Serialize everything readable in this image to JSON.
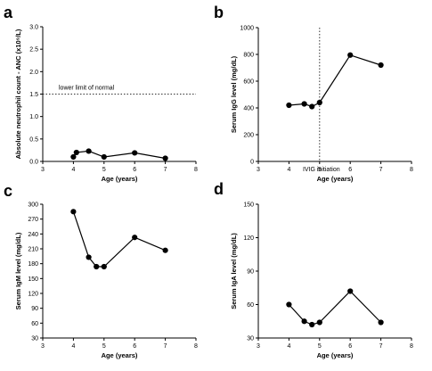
{
  "figure": {
    "panels": [
      {
        "letter": "a",
        "chart_data": {
          "type": "line",
          "x": [
            4,
            4.1,
            4.5,
            5,
            6,
            7
          ],
          "y": [
            0.1,
            0.2,
            0.23,
            0.1,
            0.19,
            0.07
          ],
          "xlabel": "Age (years)",
          "ylabel": "Absolute neutrophil count - ANC (x10⁹/L)",
          "xlim": [
            3,
            8
          ],
          "ylim": [
            0,
            3.0
          ],
          "xticks": [
            3,
            4,
            5,
            6,
            7,
            8
          ],
          "xtick_labels": [
            "3",
            "4",
            "5",
            "6",
            "7",
            "8"
          ],
          "yticks": [
            0,
            0.5,
            1.0,
            1.5,
            2.0,
            2.5,
            3.0
          ],
          "ytick_labels": [
            "0.0",
            "0.5",
            "1.0",
            "1.5",
            "2.0",
            "2.5",
            "3.0"
          ],
          "hline": {
            "y": 1.5,
            "style": "dotted",
            "label": "lower limit of normal"
          },
          "grid": false
        }
      },
      {
        "letter": "b",
        "chart_data": {
          "type": "line",
          "x": [
            4,
            4.5,
            4.75,
            5,
            6,
            7
          ],
          "y": [
            420,
            430,
            410,
            440,
            795,
            720
          ],
          "xlabel": "Age (years)",
          "ylabel": "Serum IgG level (mg/dL)",
          "xlim": [
            3,
            8
          ],
          "ylim": [
            0,
            1000
          ],
          "xticks": [
            3,
            4,
            5,
            6,
            7,
            8
          ],
          "xtick_labels": [
            "3",
            "4",
            "5",
            "6",
            "7",
            "8"
          ],
          "yticks": [
            0,
            200,
            400,
            600,
            800,
            1000
          ],
          "ytick_labels": [
            "0",
            "200",
            "400",
            "600",
            "800",
            "1000"
          ],
          "vline": {
            "x": 5,
            "style": "dotted",
            "label": "IVIG initiation"
          },
          "grid": false
        }
      },
      {
        "letter": "c",
        "chart_data": {
          "type": "line",
          "x": [
            4,
            4.5,
            4.75,
            5,
            6,
            7
          ],
          "y": [
            285,
            193,
            174,
            174,
            233,
            207
          ],
          "xlabel": "Age (years)",
          "ylabel": "Serum IgM level (mg/dL)",
          "xlim": [
            3,
            8
          ],
          "ylim": [
            30,
            300
          ],
          "xticks": [
            3,
            4,
            5,
            6,
            7,
            8
          ],
          "xtick_labels": [
            "3",
            "4",
            "5",
            "6",
            "7",
            "8"
          ],
          "yticks": [
            30,
            60,
            90,
            120,
            150,
            180,
            210,
            240,
            270,
            300
          ],
          "ytick_labels": [
            "30",
            "60",
            "90",
            "120",
            "150",
            "180",
            "210",
            "240",
            "270",
            "300"
          ],
          "grid": false
        }
      },
      {
        "letter": "d",
        "chart_data": {
          "type": "line",
          "x": [
            4,
            4.5,
            4.75,
            5,
            6,
            7
          ],
          "y": [
            60,
            45,
            42,
            44,
            72,
            44
          ],
          "xlabel": "Age (years)",
          "ylabel": "Serum IgA level (mg/dL)",
          "xlim": [
            3,
            8
          ],
          "ylim": [
            30,
            150
          ],
          "xticks": [
            3,
            4,
            5,
            6,
            7,
            8
          ],
          "xtick_labels": [
            "3",
            "4",
            "5",
            "6",
            "7",
            "8"
          ],
          "yticks": [
            30,
            60,
            90,
            120,
            150
          ],
          "ytick_labels": [
            "30",
            "60",
            "90",
            "120",
            "150"
          ],
          "grid": false
        }
      }
    ]
  }
}
